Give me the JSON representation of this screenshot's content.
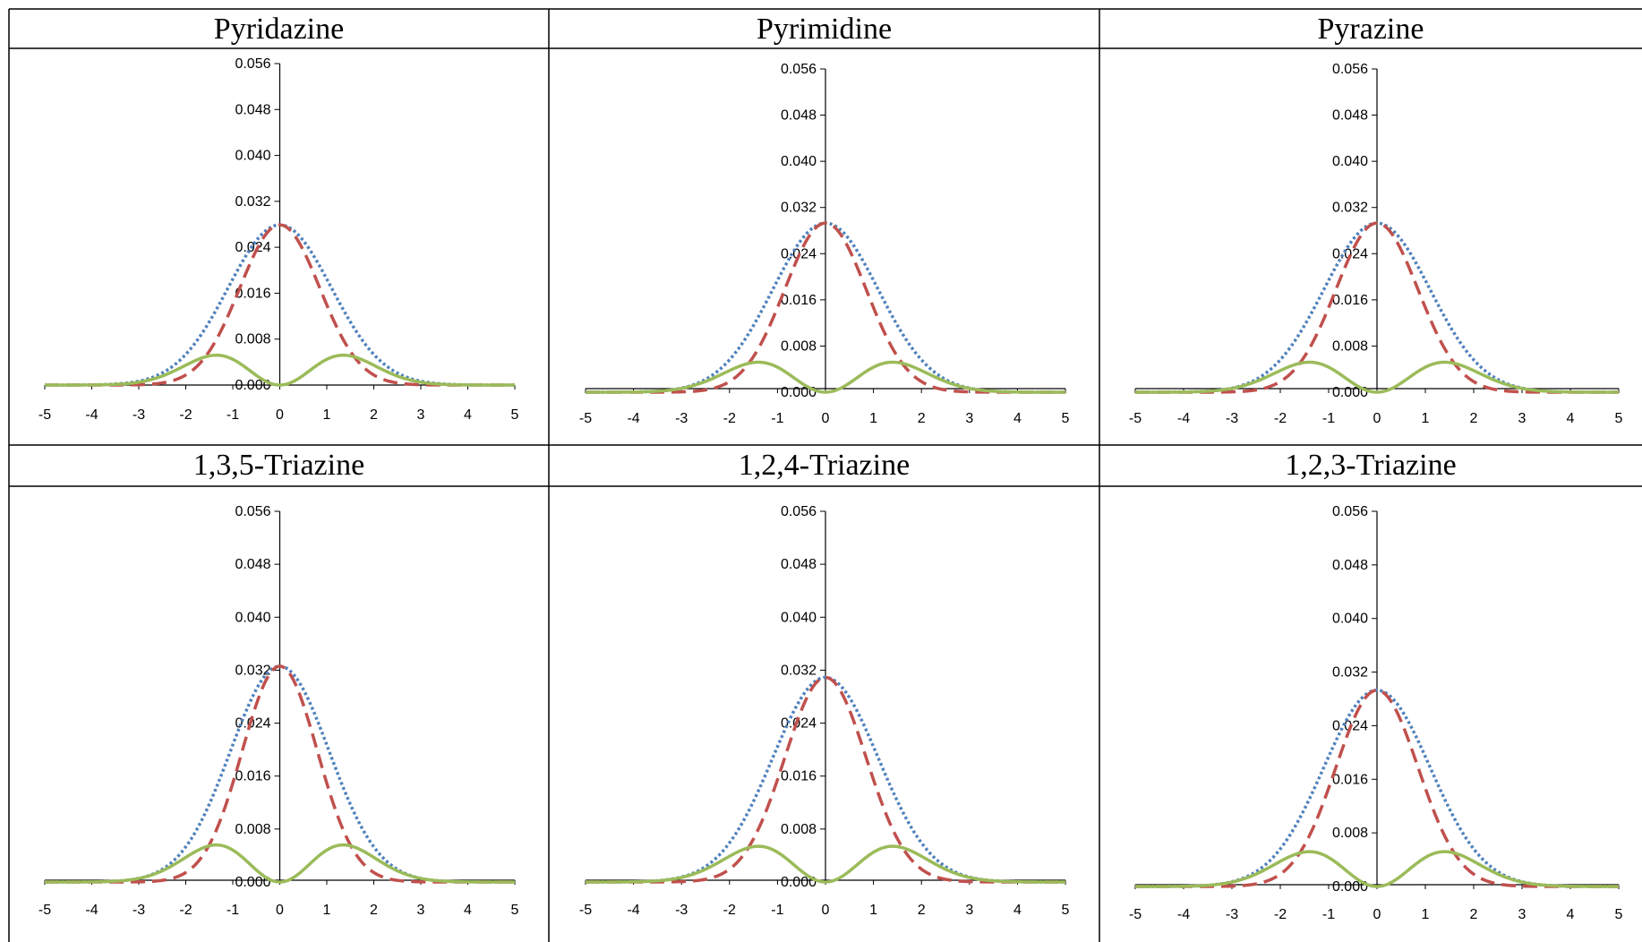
{
  "colors": {
    "total": "#4f81bd",
    "sigma": "#c0504d",
    "pi": "#9bbb59"
  },
  "y_ticks": [
    "0.000",
    "0.008",
    "0.016",
    "0.024",
    "0.032",
    "0.040",
    "0.048",
    "0.056"
  ],
  "x_ticks": [
    "-5",
    "-4",
    "-3",
    "-2",
    "-1",
    "0",
    "1",
    "2",
    "3",
    "4",
    "5"
  ],
  "chart_data": [
    {
      "type": "line",
      "title": "Pyridazine",
      "xlim": [
        -5,
        5
      ],
      "ylim": [
        0,
        0.056
      ],
      "series": [
        {
          "style": "dotted",
          "color": "#4f81bd",
          "peak_x": 0,
          "peak_y": 0.0279,
          "width_sigma": 1.1
        },
        {
          "style": "dashed",
          "color": "#c0504d",
          "peak_x": 0,
          "peak_y": 0.0279,
          "width_sigma": 0.85
        },
        {
          "style": "solid",
          "color": "#9bbb59",
          "peak_x": [
            -1.35,
            1.35
          ],
          "peak_y": 0.0052
        }
      ]
    },
    {
      "type": "line",
      "title": "Pyrimidine",
      "xlim": [
        -5,
        5
      ],
      "ylim": [
        0,
        0.056
      ],
      "series": [
        {
          "style": "dotted",
          "color": "#4f81bd",
          "peak_x": 0,
          "peak_y": 0.0293,
          "width_sigma": 1.1
        },
        {
          "style": "dashed",
          "color": "#c0504d",
          "peak_x": 0,
          "peak_y": 0.0293,
          "width_sigma": 0.85
        },
        {
          "style": "solid",
          "color": "#9bbb59",
          "peak_x": [
            -1.4,
            1.4
          ],
          "peak_y": 0.0052
        }
      ]
    },
    {
      "type": "line",
      "title": "Pyrazine",
      "xlim": [
        -5,
        5
      ],
      "ylim": [
        0,
        0.056
      ],
      "series": [
        {
          "style": "dotted",
          "color": "#4f81bd",
          "peak_x": 0,
          "peak_y": 0.0293,
          "width_sigma": 1.1
        },
        {
          "style": "dashed",
          "color": "#c0504d",
          "peak_x": 0,
          "peak_y": 0.0293,
          "width_sigma": 0.85
        },
        {
          "style": "solid",
          "color": "#9bbb59",
          "peak_x": [
            -1.4,
            1.4
          ],
          "peak_y": 0.0052
        }
      ]
    },
    {
      "type": "line",
      "title": "1,3,5-Triazine",
      "xlim": [
        -5,
        5
      ],
      "ylim": [
        0,
        0.056
      ],
      "series": [
        {
          "style": "dotted",
          "color": "#4f81bd",
          "peak_x": 0,
          "peak_y": 0.0326,
          "width_sigma": 1.05
        },
        {
          "style": "dashed",
          "color": "#c0504d",
          "peak_x": 0,
          "peak_y": 0.0326,
          "width_sigma": 0.8
        },
        {
          "style": "solid",
          "color": "#9bbb59",
          "peak_x": [
            -1.35,
            1.35
          ],
          "peak_y": 0.0056
        }
      ]
    },
    {
      "type": "line",
      "title": "1,2,4-Triazine",
      "xlim": [
        -5,
        5
      ],
      "ylim": [
        0,
        0.056
      ],
      "series": [
        {
          "style": "dotted",
          "color": "#4f81bd",
          "peak_x": 0,
          "peak_y": 0.0309,
          "width_sigma": 1.1
        },
        {
          "style": "dashed",
          "color": "#c0504d",
          "peak_x": 0,
          "peak_y": 0.0309,
          "width_sigma": 0.85
        },
        {
          "style": "solid",
          "color": "#9bbb59",
          "peak_x": [
            -1.4,
            1.4
          ],
          "peak_y": 0.0054
        }
      ]
    },
    {
      "type": "line",
      "title": "1,2,3-Triazine",
      "xlim": [
        -5,
        5
      ],
      "ylim": [
        0,
        0.056
      ],
      "series": [
        {
          "style": "dotted",
          "color": "#4f81bd",
          "peak_x": 0,
          "peak_y": 0.0293,
          "width_sigma": 1.1
        },
        {
          "style": "dashed",
          "color": "#c0504d",
          "peak_x": 0,
          "peak_y": 0.0293,
          "width_sigma": 0.85
        },
        {
          "style": "solid",
          "color": "#9bbb59",
          "peak_x": [
            -1.4,
            1.4
          ],
          "peak_y": 0.0052
        }
      ]
    }
  ]
}
